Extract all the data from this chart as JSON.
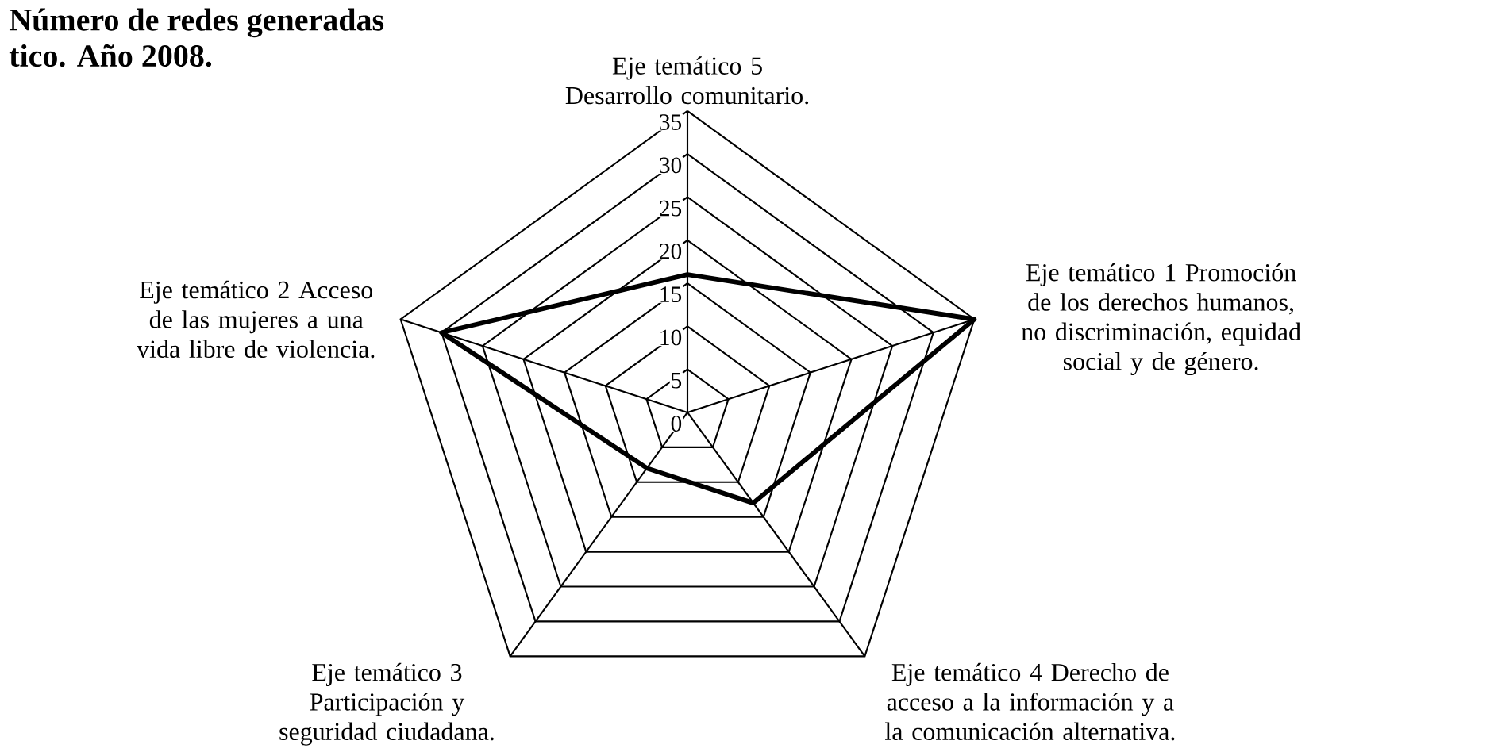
{
  "chart_data": {
    "type": "radar",
    "title": "Número de redes generadas",
    "subtitle": "tico. Año 2008.",
    "categories": [
      "Eje temático 5 Desarrollo comunitario.",
      "Eje temático 1 Promoción de los derechos humanos, no discriminación, equidad social y de género.",
      "Eje temático 4 Derecho de acceso a la información y a la comunicación alternativa.",
      "Eje temático 3 Participación y seguridad ciudadana.",
      "Eje temático 2 Acceso de las mujeres a una vida libre de violencia."
    ],
    "series": [
      {
        "color": "#000000",
        "values": [
          16,
          35,
          13,
          8,
          30
        ]
      }
    ],
    "ylim": [
      0,
      35
    ],
    "yticks": [
      0,
      5,
      10,
      15,
      20,
      25,
      30,
      35
    ],
    "grid": true
  }
}
